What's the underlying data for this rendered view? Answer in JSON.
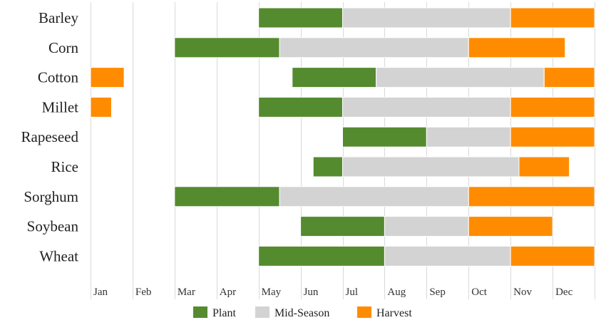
{
  "chart_data": {
    "type": "bar",
    "orientation": "horizontal",
    "stacked": true,
    "title": "",
    "xlabel": "",
    "ylabel": "",
    "grid": "vertical",
    "legend": "bottom",
    "x_ticks": [
      "Jan",
      "Feb",
      "Mar",
      "Apr",
      "May",
      "Jun",
      "Jul",
      "Aug",
      "Sep",
      "Oct",
      "Nov",
      "Dec"
    ],
    "xlim": [
      1,
      13
    ],
    "categories": [
      "Barley",
      "Corn",
      "Cotton",
      "Millet",
      "Rapeseed",
      "Rice",
      "Sorghum",
      "Soybean",
      "Wheat"
    ],
    "series": [
      {
        "name": "Plant",
        "color": "#558b2f"
      },
      {
        "name": "Mid-Season",
        "color": "#d4d3d4"
      },
      {
        "name": "Harvest",
        "color": "#ff8c00"
      }
    ],
    "bars": [
      {
        "category": "Barley",
        "segments": [
          {
            "series": "Plant",
            "start": 5.0,
            "end": 7.0
          },
          {
            "series": "Mid-Season",
            "start": 7.0,
            "end": 11.0
          },
          {
            "series": "Harvest",
            "start": 11.0,
            "end": 13.0
          }
        ]
      },
      {
        "category": "Corn",
        "segments": [
          {
            "series": "Plant",
            "start": 3.0,
            "end": 5.5
          },
          {
            "series": "Mid-Season",
            "start": 5.5,
            "end": 10.0
          },
          {
            "series": "Harvest",
            "start": 10.0,
            "end": 12.3
          }
        ]
      },
      {
        "category": "Cotton",
        "segments": [
          {
            "series": "Harvest",
            "start": 1.0,
            "end": 1.8
          },
          {
            "series": "Plant",
            "start": 5.8,
            "end": 7.8
          },
          {
            "series": "Mid-Season",
            "start": 7.8,
            "end": 11.8
          },
          {
            "series": "Harvest",
            "start": 11.8,
            "end": 13.0
          }
        ]
      },
      {
        "category": "Millet",
        "segments": [
          {
            "series": "Harvest",
            "start": 1.0,
            "end": 1.5
          },
          {
            "series": "Plant",
            "start": 5.0,
            "end": 7.0
          },
          {
            "series": "Mid-Season",
            "start": 7.0,
            "end": 11.0
          },
          {
            "series": "Harvest",
            "start": 11.0,
            "end": 13.0
          }
        ]
      },
      {
        "category": "Rapeseed",
        "segments": [
          {
            "series": "Plant",
            "start": 7.0,
            "end": 9.0
          },
          {
            "series": "Mid-Season",
            "start": 9.0,
            "end": 11.0
          },
          {
            "series": "Harvest",
            "start": 11.0,
            "end": 13.0
          }
        ]
      },
      {
        "category": "Rice",
        "segments": [
          {
            "series": "Plant",
            "start": 6.3,
            "end": 7.0
          },
          {
            "series": "Mid-Season",
            "start": 7.0,
            "end": 11.2
          },
          {
            "series": "Harvest",
            "start": 11.2,
            "end": 12.4
          }
        ]
      },
      {
        "category": "Sorghum",
        "segments": [
          {
            "series": "Plant",
            "start": 3.0,
            "end": 5.5
          },
          {
            "series": "Mid-Season",
            "start": 5.5,
            "end": 10.0
          },
          {
            "series": "Harvest",
            "start": 10.0,
            "end": 13.0
          }
        ]
      },
      {
        "category": "Soybean",
        "segments": [
          {
            "series": "Plant",
            "start": 6.0,
            "end": 8.0
          },
          {
            "series": "Mid-Season",
            "start": 8.0,
            "end": 10.0
          },
          {
            "series": "Harvest",
            "start": 10.0,
            "end": 12.0
          }
        ]
      },
      {
        "category": "Wheat",
        "segments": [
          {
            "series": "Plant",
            "start": 5.0,
            "end": 8.0
          },
          {
            "series": "Mid-Season",
            "start": 8.0,
            "end": 11.0
          },
          {
            "series": "Harvest",
            "start": 11.0,
            "end": 13.0
          }
        ]
      }
    ]
  }
}
